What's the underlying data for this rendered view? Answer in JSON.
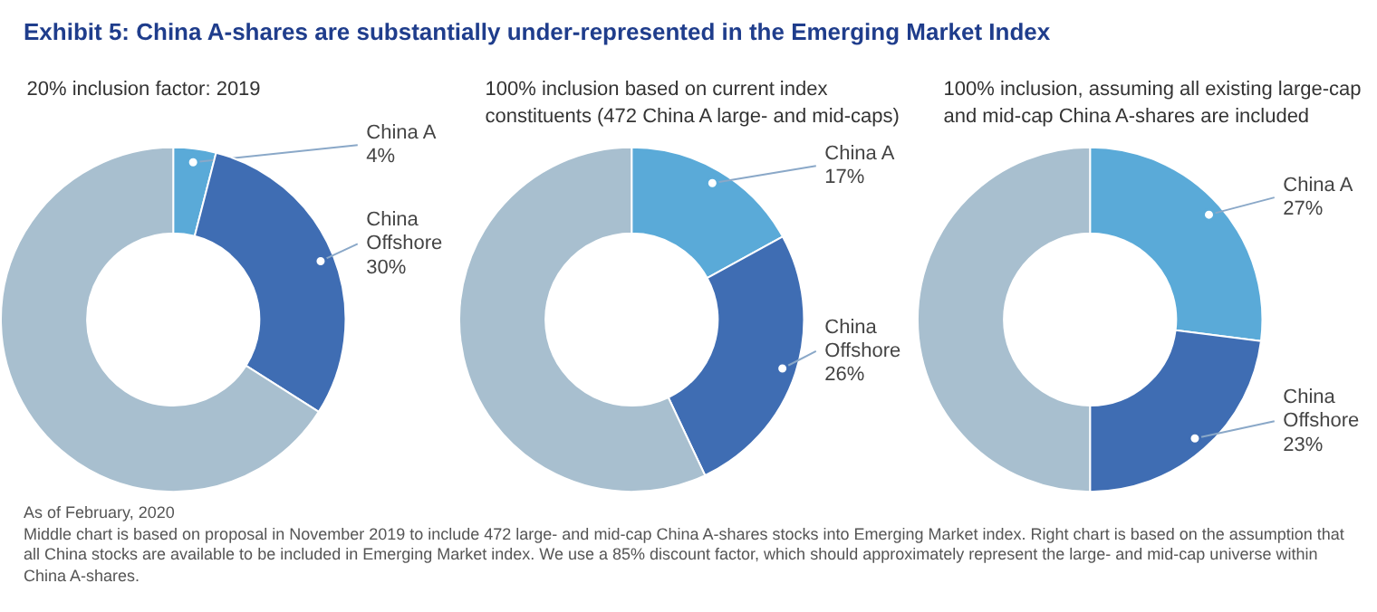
{
  "chart_data": [
    {
      "type": "donut",
      "title": "Exhibit 5: China A-shares are substantially under-represented in the Emerging Market Index",
      "subtitle": "20% inclusion factor: 2019",
      "categories": [
        "China A",
        "China Offshore",
        null
      ],
      "values": [
        4,
        30,
        66
      ],
      "value_labels": [
        "4%",
        "30%",
        null
      ],
      "colors": [
        "#5aaad8",
        "#3f6db3",
        "#a8bfcf"
      ],
      "annotations": [
        "As of February, 2020",
        "Middle chart is based on proposal in November 2019 to include 472 large- and mid-cap China A-shares stocks into Emerging Market index. Right chart is based on the assumption that all China stocks are available to be included in Emerging Market index. We use a 85% discount factor, which should approximately represent the large- and mid-cap universe within China A-shares."
      ]
    },
    {
      "type": "donut",
      "subtitle": "100% inclusion based on current index\nconstituents (472 China A large- and mid-caps)",
      "categories": [
        "China A",
        "China Offshore",
        null
      ],
      "values": [
        17,
        26,
        57
      ],
      "value_labels": [
        "17%",
        "26%",
        null
      ],
      "colors": [
        "#5aaad8",
        "#3f6db3",
        "#a8bfcf"
      ]
    },
    {
      "type": "donut",
      "subtitle": "100% inclusion, assuming all existing large-cap\nand mid-cap China A-shares are included",
      "categories": [
        "China A",
        "China Offshore",
        null
      ],
      "values": [
        27,
        23,
        50
      ],
      "value_labels": [
        "27%",
        "23%",
        null
      ],
      "colors": [
        "#5aaad8",
        "#3f6db3",
        "#a8bfcf"
      ]
    }
  ]
}
